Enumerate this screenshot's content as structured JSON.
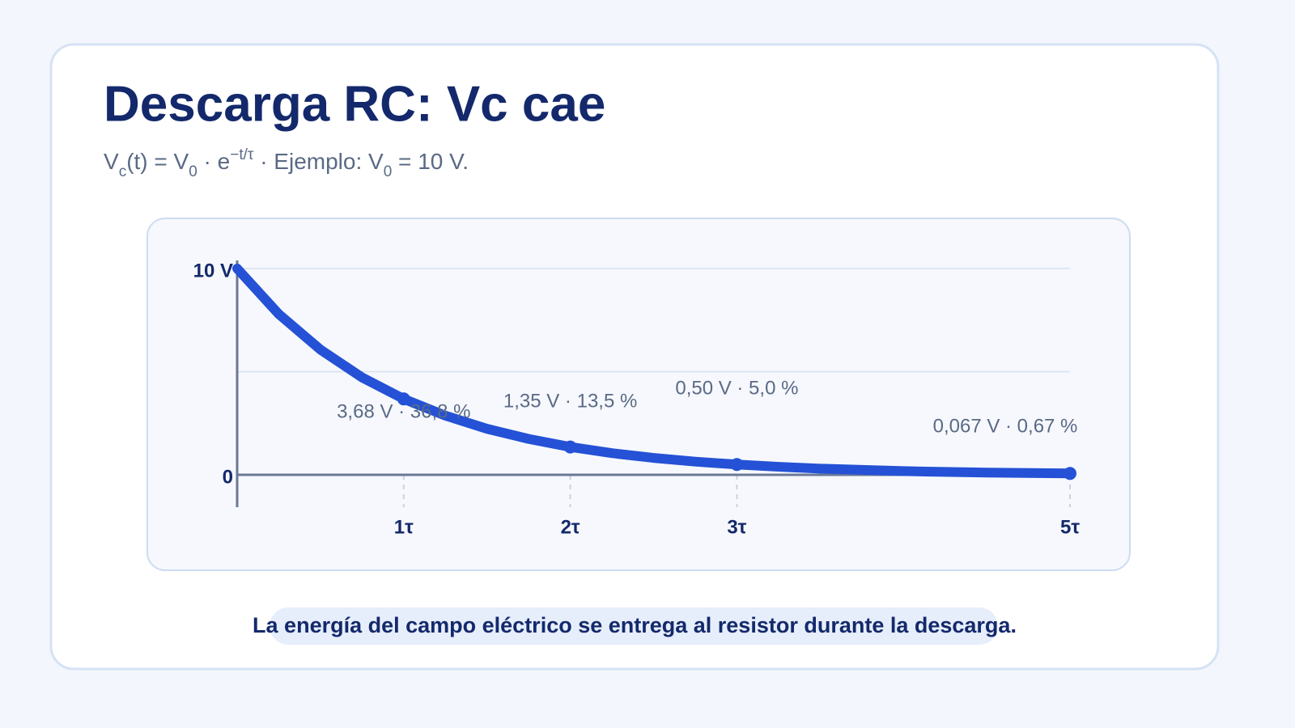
{
  "chart_data": {
    "type": "line",
    "title": "Descarga RC: Vc cae",
    "subtitle": [
      "V",
      "c",
      "(t) = V",
      "0",
      " · e",
      "−t/τ",
      " · Ejemplo: V",
      "0",
      " = 10 V."
    ],
    "x": [
      0,
      0.25,
      0.5,
      0.75,
      1,
      1.25,
      1.5,
      1.75,
      2,
      2.25,
      2.5,
      2.75,
      3,
      3.25,
      3.5,
      3.75,
      4,
      4.25,
      4.5,
      4.75,
      5
    ],
    "series": [
      {
        "color": "#2451d6",
        "values": [
          10,
          7.79,
          6.07,
          4.72,
          3.68,
          2.87,
          2.23,
          1.74,
          1.35,
          1.05,
          0.82,
          0.64,
          0.5,
          0.39,
          0.3,
          0.24,
          0.18,
          0.14,
          0.11,
          0.09,
          0.067
        ]
      }
    ],
    "xlim": [
      0,
      5
    ],
    "ylim": [
      0,
      10
    ],
    "xticks": [
      {
        "value": 1,
        "label": "1τ"
      },
      {
        "value": 2,
        "label": "2τ"
      },
      {
        "value": 3,
        "label": "3τ"
      },
      {
        "value": 5,
        "label": "5τ"
      }
    ],
    "yticks": [
      0,
      {
        "value": 10,
        "label": "10 V"
      }
    ],
    "grid_y": [
      5,
      10
    ],
    "annotations": [
      {
        "x": 1,
        "y": 3.68,
        "label": "3,68 V · 36,8 %"
      },
      {
        "x": 2,
        "y": 1.35,
        "label": "1,35 V · 13,5 %"
      },
      {
        "x": 3,
        "y": 0.5,
        "label": "0,50 V · 5,0 %"
      },
      {
        "x": 5,
        "y": 0.067,
        "label": "0,067 V · 0,67 %"
      }
    ],
    "note": "La energía del campo eléctrico se entrega al resistor durante la descarga."
  }
}
